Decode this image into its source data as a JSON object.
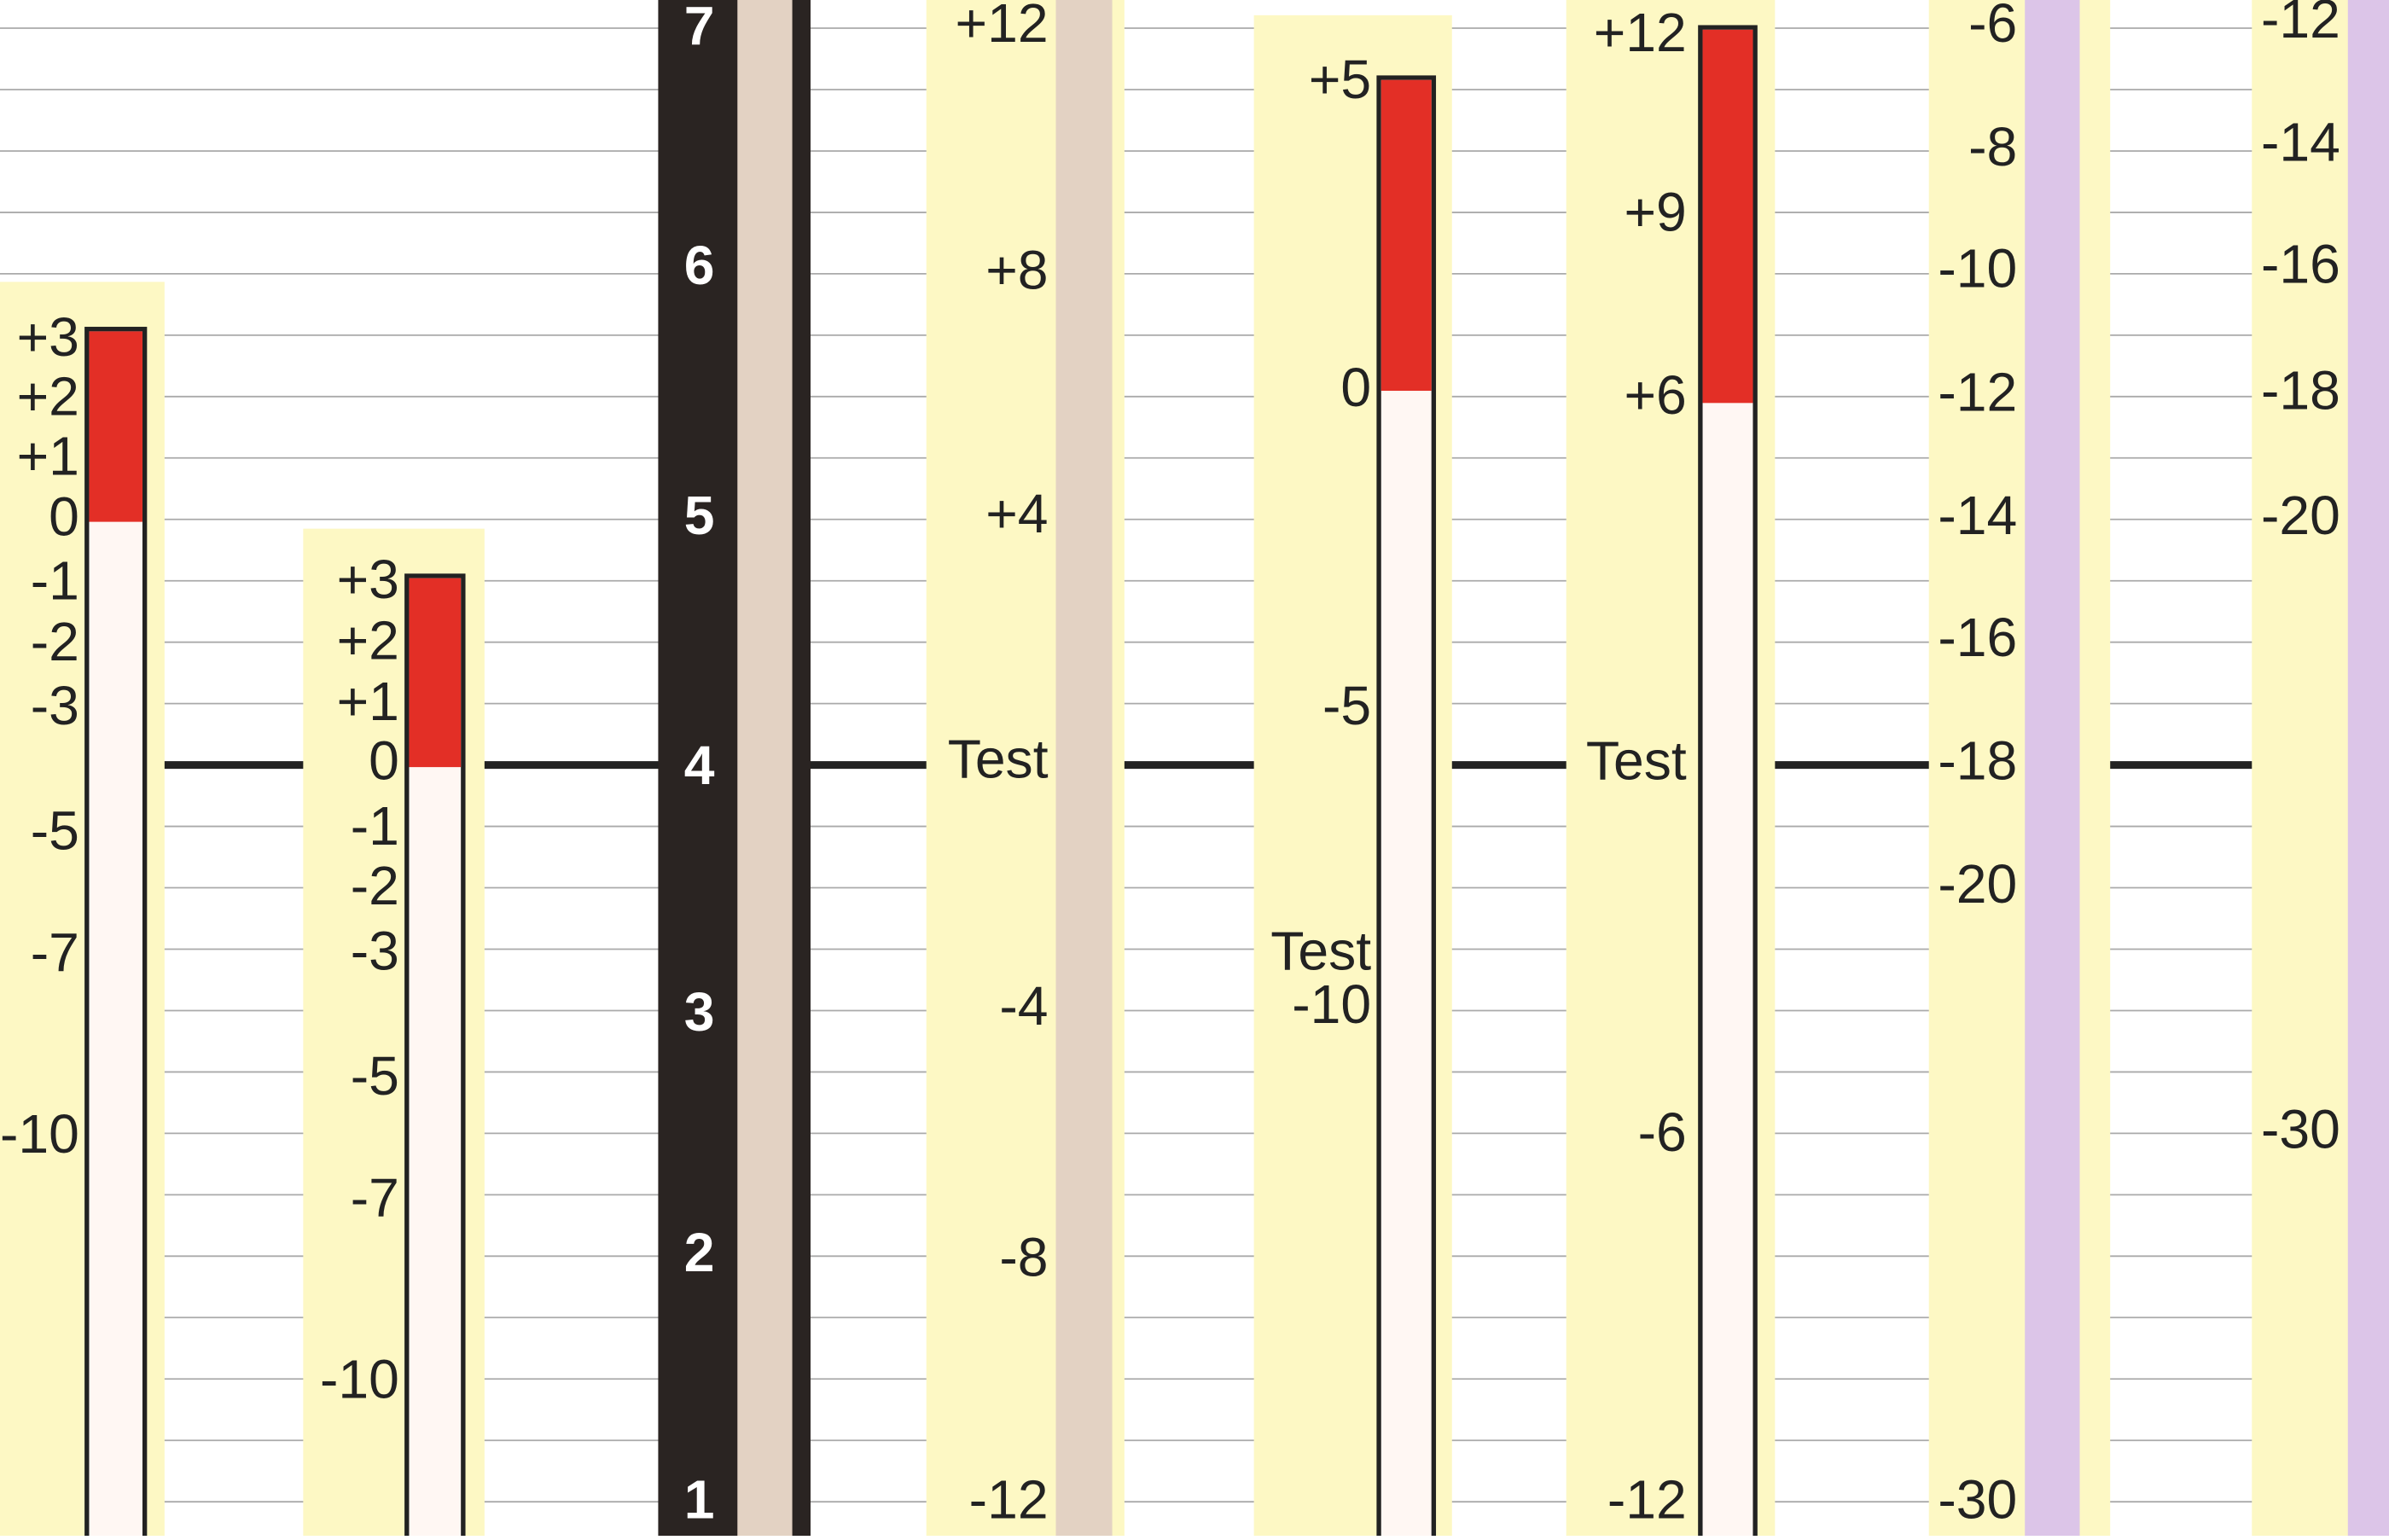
{
  "meters": [
    {
      "labels": [
        "+3",
        "+2",
        "+1",
        "0",
        "-1",
        "-2",
        "-3",
        "-5",
        "-7",
        "-10"
      ]
    },
    {
      "labels": [
        "+3",
        "+2",
        "+1",
        "0",
        "-1",
        "-2",
        "-3",
        "-5",
        "-7",
        "-10"
      ]
    },
    {
      "labels": [
        "7",
        "6",
        "5",
        "4",
        "3",
        "2",
        "1"
      ]
    },
    {
      "labels": [
        "+12",
        "+8",
        "+4",
        "Test",
        "-4",
        "-8",
        "-12"
      ]
    },
    {
      "labels": [
        "+5",
        "0",
        "-5",
        "Test",
        "-10"
      ]
    },
    {
      "labels": [
        "+12",
        "+9",
        "+6",
        "Test",
        "-6",
        "-12"
      ]
    },
    {
      "labels": [
        "-6",
        "-8",
        "-10",
        "-12",
        "-14",
        "-16",
        "-18",
        "-20",
        "-30"
      ]
    },
    {
      "labels": [
        "-12",
        "-14",
        "-16",
        "-18",
        "-20",
        "-30"
      ]
    }
  ]
}
